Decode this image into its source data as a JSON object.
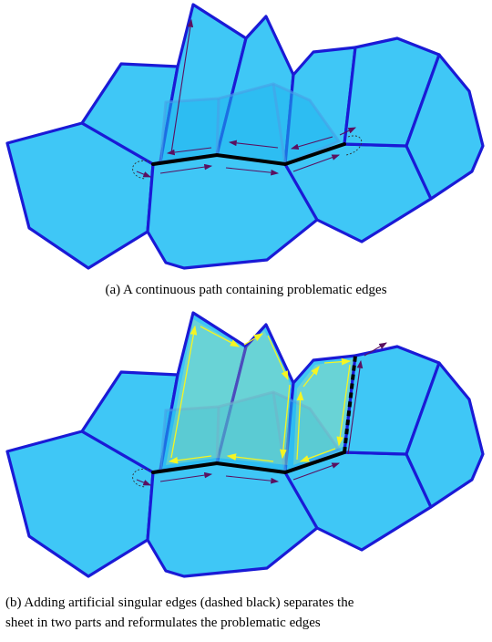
{
  "captions": {
    "a": "(a) A continuous path containing problematic edges",
    "b_line1": "(b) Adding artificial singular edges (dashed black) separates the",
    "b_line2": "sheet in two parts and reformulates the problematic edges"
  },
  "colors": {
    "cell_fill": "#3fc7f6",
    "cell_stroke": "#1a1ad6",
    "singular_edge": "#000000",
    "path_arrow": "#5a1060",
    "highlight_arrow": "#f5f522"
  }
}
